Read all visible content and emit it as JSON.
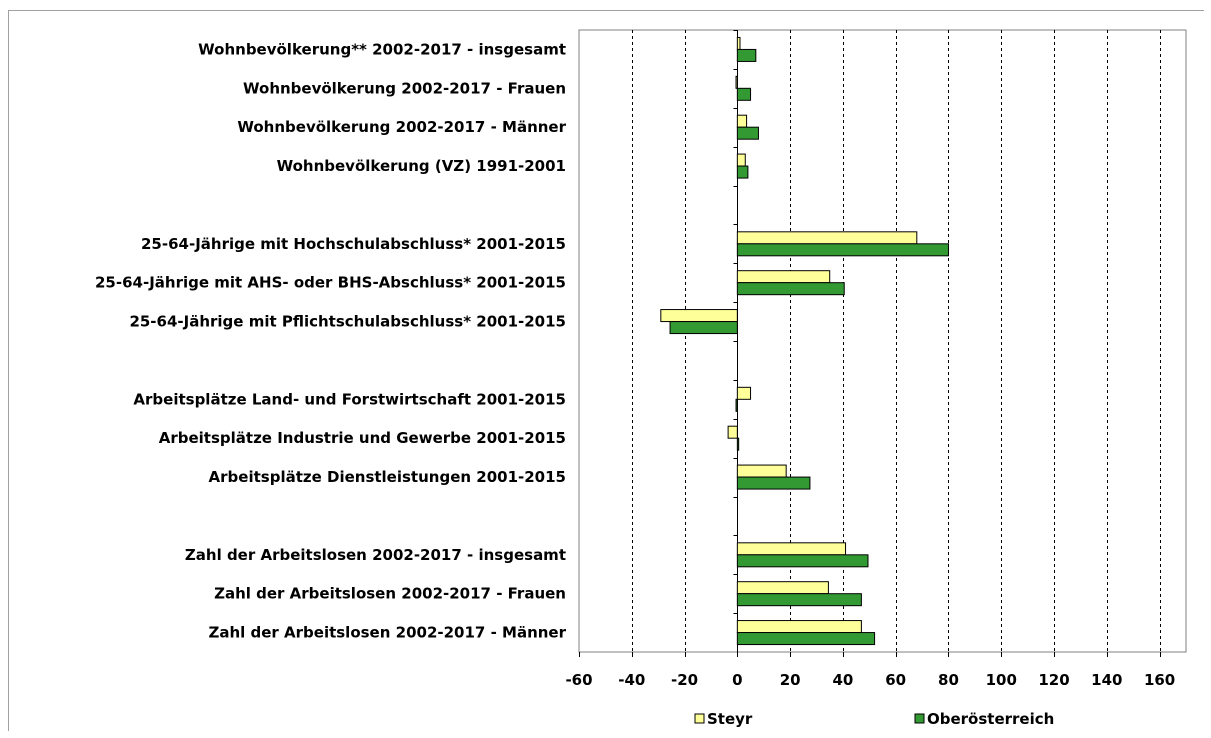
{
  "chart_data": {
    "type": "bar",
    "orientation": "horizontal",
    "categories": [
      "Wohnbevölkerung** 2002-2017 - insgesamt",
      "Wohnbevölkerung 2002-2017 - Frauen",
      "Wohnbevölkerung 2002-2017 - Männer",
      "Wohnbevölkerung (VZ) 1991-2001",
      "",
      "25-64-Jährige mit Hochschulabschluss* 2001-2015",
      "25-64-Jährige mit AHS- oder BHS-Abschluss* 2001-2015",
      "25-64-Jährige mit Pflichtschulabschluss* 2001-2015",
      "",
      "Arbeitsplätze Land- und Forstwirtschaft 2001-2015",
      "Arbeitsplätze Industrie und Gewerbe 2001-2015",
      "Arbeitsplätze Dienstleistungen 2001-2015",
      "",
      "Zahl der Arbeitslosen 2002-2017 - insgesamt",
      "Zahl der Arbeitslosen 2002-2017 - Frauen",
      "Zahl der Arbeitslosen 2002-2017 - Männer"
    ],
    "series": [
      {
        "name": "Steyr",
        "color": "#ffff99",
        "values": [
          1,
          -0.5,
          3.5,
          3,
          null,
          68,
          35,
          -29,
          null,
          5,
          -3.5,
          18.5,
          null,
          41,
          34.5,
          47
        ]
      },
      {
        "name": "Oberösterreich",
        "color": "#339933",
        "values": [
          7,
          5,
          8,
          4,
          null,
          80,
          40.5,
          -25.5,
          null,
          -0.5,
          0.5,
          27.5,
          null,
          49.5,
          47,
          52
        ]
      }
    ],
    "xlim": [
      -60,
      170
    ],
    "xticks": [
      -60,
      -40,
      -20,
      0,
      20,
      40,
      60,
      80,
      100,
      120,
      140,
      160
    ],
    "grid": "vertical-dashed",
    "legend": "bottom"
  }
}
